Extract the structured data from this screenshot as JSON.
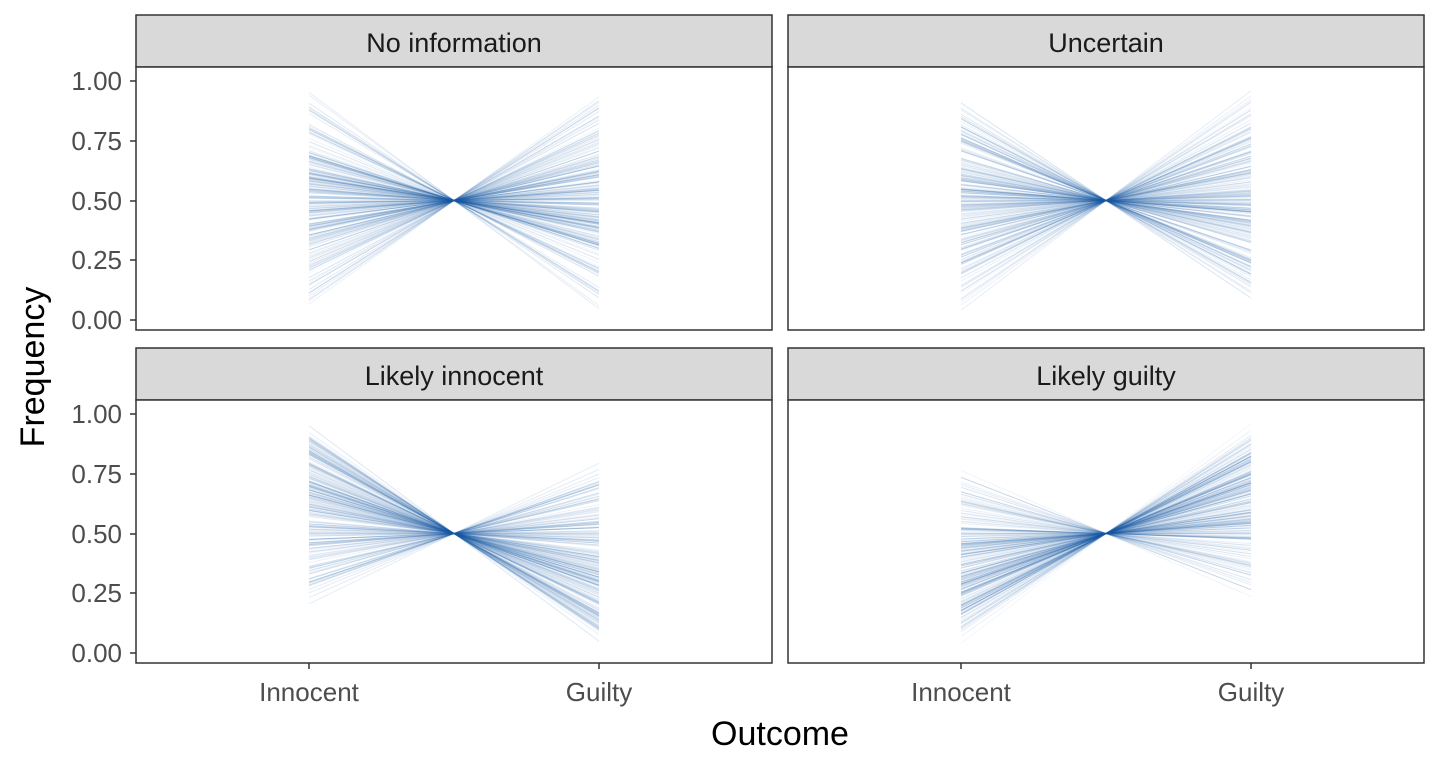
{
  "chart_data": {
    "type": "line",
    "facet_layout": "2x2",
    "xlabel": "Outcome",
    "ylabel": "Frequency",
    "x_categories": [
      "Innocent",
      "Guilty"
    ],
    "ylim": [
      0,
      1
    ],
    "y_ticks": [
      "0.00",
      "0.25",
      "0.50",
      "0.75",
      "1.00"
    ],
    "line_color": "#1f5fa8",
    "strip_fill": "#d9d9d9",
    "panel_border": "#333333",
    "grid": false,
    "panels": [
      {
        "title": "No information",
        "innocent_range": [
          0.0,
          1.0
        ],
        "guilty_range": [
          0.0,
          1.0
        ],
        "innocent_mode": 0.5,
        "crossing_y": 0.5
      },
      {
        "title": "Uncertain",
        "innocent_range": [
          0.01,
          0.98
        ],
        "guilty_range": [
          0.02,
          0.99
        ],
        "innocent_mode": 0.5,
        "crossing_y": 0.5
      },
      {
        "title": "Likely innocent",
        "innocent_range": [
          0.17,
          0.98
        ],
        "guilty_range": [
          0.02,
          0.83
        ],
        "innocent_mode": 0.72,
        "crossing_y": 0.5
      },
      {
        "title": "Likely guilty",
        "innocent_range": [
          0.01,
          0.78
        ],
        "guilty_range": [
          0.22,
          0.99
        ],
        "innocent_mode": 0.28,
        "crossing_y": 0.5
      }
    ]
  }
}
